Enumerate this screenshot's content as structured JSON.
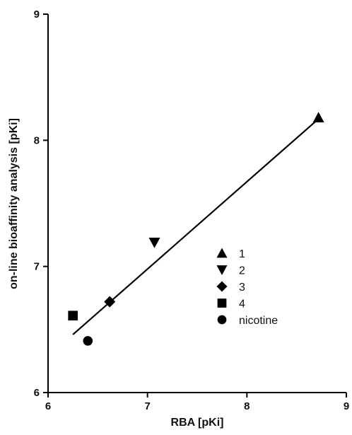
{
  "chart_data": {
    "type": "scatter",
    "title": "",
    "xlabel": "RBA [pKi]",
    "ylabel": "on-line bioaffinity analysis [pKi]",
    "xlim": [
      6,
      9
    ],
    "ylim": [
      6,
      9
    ],
    "xticks": [
      "6",
      "7",
      "8",
      "9"
    ],
    "yticks": [
      "6",
      "7",
      "8",
      "9"
    ],
    "grid": false,
    "legend_position": "bottom-right",
    "series": [
      {
        "name": "1",
        "marker": "triangle-up",
        "color": "#000000",
        "points": [
          {
            "x": 8.72,
            "y": 8.18
          }
        ]
      },
      {
        "name": "2",
        "marker": "triangle-down",
        "color": "#000000",
        "points": [
          {
            "x": 7.07,
            "y": 7.19
          }
        ]
      },
      {
        "name": "3",
        "marker": "diamond",
        "color": "#000000",
        "points": [
          {
            "x": 6.62,
            "y": 6.72
          }
        ]
      },
      {
        "name": "4",
        "marker": "square",
        "color": "#000000",
        "points": [
          {
            "x": 6.25,
            "y": 6.61
          }
        ]
      },
      {
        "name": "nicotine",
        "marker": "circle",
        "color": "#000000",
        "points": [
          {
            "x": 6.4,
            "y": 6.41
          }
        ]
      }
    ],
    "regression_line": {
      "x": [
        6.25,
        8.72
      ],
      "y": [
        6.46,
        8.17
      ]
    }
  }
}
